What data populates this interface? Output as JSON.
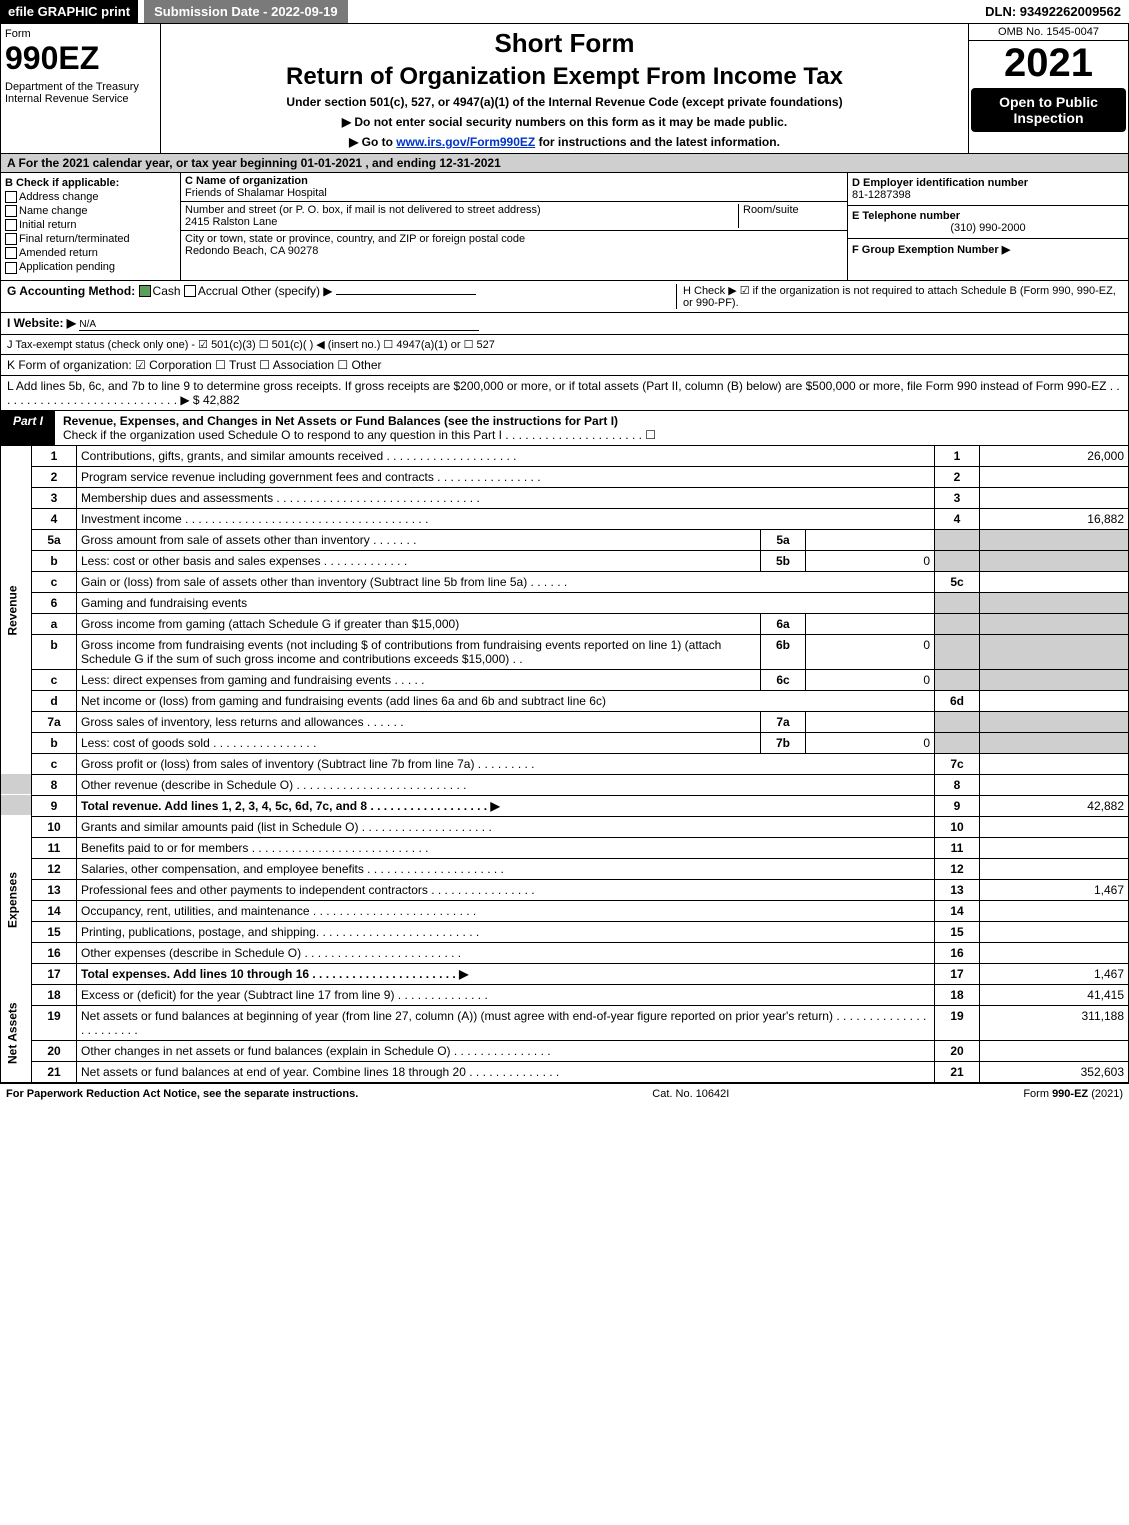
{
  "top": {
    "efile": "efile GRAPHIC print",
    "submission": "Submission Date - 2022-09-19",
    "dln": "DLN: 93492262009562"
  },
  "header": {
    "form_label": "Form",
    "form_no": "990EZ",
    "dept": "Department of the Treasury\nInternal Revenue Service",
    "short": "Short Form",
    "title": "Return of Organization Exempt From Income Tax",
    "subtitle": "Under section 501(c), 527, or 4947(a)(1) of the Internal Revenue Code (except private foundations)",
    "note1": "▶ Do not enter social security numbers on this form as it may be made public.",
    "note2_pre": "▶ Go to ",
    "note2_link": "www.irs.gov/Form990EZ",
    "note2_post": " for instructions and the latest information.",
    "omb": "OMB No. 1545-0047",
    "year": "2021",
    "open": "Open to Public Inspection"
  },
  "secA": "A  For the 2021 calendar year, or tax year beginning 01-01-2021  , and ending 12-31-2021",
  "checkB": {
    "label": "B  Check if applicable:",
    "addr": "Address change",
    "name": "Name change",
    "init": "Initial return",
    "final": "Final return/terminated",
    "amend": "Amended return",
    "app": "Application pending"
  },
  "org": {
    "cname_lbl": "C Name of organization",
    "cname": "Friends of Shalamar Hospital",
    "addr_lbl": "Number and street (or P. O. box, if mail is not delivered to street address)",
    "room_lbl": "Room/suite",
    "addr": "2415 Ralston Lane",
    "city_lbl": "City or town, state or province, country, and ZIP or foreign postal code",
    "city": "Redondo Beach, CA  90278"
  },
  "right": {
    "ein_lbl": "D Employer identification number",
    "ein": "81-1287398",
    "tel_lbl": "E Telephone number",
    "tel": "(310) 990-2000",
    "grp_lbl": "F Group Exemption Number   ▶"
  },
  "lineG": {
    "label": "G Accounting Method:",
    "cash": "Cash",
    "accrual": "Accrual",
    "other": "Other (specify) ▶"
  },
  "lineH": "H   Check ▶ ☑ if the organization is not required to attach Schedule B (Form 990, 990-EZ, or 990-PF).",
  "lineI": {
    "label": "I Website: ▶",
    "val": "N/A"
  },
  "lineJ": "J Tax-exempt status (check only one) - ☑ 501(c)(3) ☐ 501(c)(  ) ◀ (insert no.) ☐ 4947(a)(1) or ☐ 527",
  "lineK": "K Form of organization:  ☑ Corporation  ☐ Trust  ☐ Association  ☐ Other",
  "lineL": "L Add lines 5b, 6c, and 7b to line 9 to determine gross receipts. If gross receipts are $200,000 or more, or if total assets (Part II, column (B) below) are $500,000 or more, file Form 990 instead of Form 990-EZ  .  .  .  .  .  .  .  .  .  .  .  .  .  .  .  .  .  .  .  .  .  .  .  .  .  .  .  .  ▶ $ 42,882",
  "partI": {
    "tab": "Part I",
    "title": "Revenue, Expenses, and Changes in Net Assets or Fund Balances (see the instructions for Part I)",
    "check": "Check if the organization used Schedule O to respond to any question in this Part I  .  .  .  .  .  .  .  .  .  .  .  .  .  .  .  .  .  .  .  .  .  ☐"
  },
  "sideLabels": {
    "rev": "Revenue",
    "exp": "Expenses",
    "net": "Net Assets"
  },
  "lines": {
    "l1": {
      "n": "1",
      "d": "Contributions, gifts, grants, and similar amounts received  .  .  .  .  .  .  .  .  .  .  .  .  .  .  .  .  .  .  .  .",
      "ln": "1",
      "v": "26,000"
    },
    "l2": {
      "n": "2",
      "d": "Program service revenue including government fees and contracts  .  .  .  .  .  .  .  .  .  .  .  .  .  .  .  .",
      "ln": "2",
      "v": ""
    },
    "l3": {
      "n": "3",
      "d": "Membership dues and assessments  .  .  .  .  .  .  .  .  .  .  .  .  .  .  .  .  .  .  .  .  .  .  .  .  .  .  .  .  .  .  .",
      "ln": "3",
      "v": ""
    },
    "l4": {
      "n": "4",
      "d": "Investment income  .  .  .  .  .  .  .  .  .  .  .  .  .  .  .  .  .  .  .  .  .  .  .  .  .  .  .  .  .  .  .  .  .  .  .  .  .",
      "ln": "4",
      "v": "16,882"
    },
    "l5a": {
      "n": "5a",
      "d": "Gross amount from sale of assets other than inventory  .  .  .  .  .  .  .",
      "sub": "5a",
      "sv": ""
    },
    "l5b": {
      "n": "b",
      "d": "Less: cost or other basis and sales expenses  .  .  .  .  .  .  .  .  .  .  .  .  .",
      "sub": "5b",
      "sv": "0"
    },
    "l5c": {
      "n": "c",
      "d": "Gain or (loss) from sale of assets other than inventory (Subtract line 5b from line 5a)  .  .  .  .  .  .",
      "ln": "5c",
      "v": ""
    },
    "l6": {
      "n": "6",
      "d": "Gaming and fundraising events"
    },
    "l6a": {
      "n": "a",
      "d": "Gross income from gaming (attach Schedule G if greater than $15,000)",
      "sub": "6a",
      "sv": ""
    },
    "l6b": {
      "n": "b",
      "d": "Gross income from fundraising events (not including $                      of contributions from fundraising events reported on line 1) (attach Schedule G if the sum of such gross income and contributions exceeds $15,000)    .   .",
      "sub": "6b",
      "sv": "0"
    },
    "l6c": {
      "n": "c",
      "d": "Less: direct expenses from gaming and fundraising events   .  .  .  .  .",
      "sub": "6c",
      "sv": "0"
    },
    "l6d": {
      "n": "d",
      "d": "Net income or (loss) from gaming and fundraising events (add lines 6a and 6b and subtract line 6c)",
      "ln": "6d",
      "v": ""
    },
    "l7a": {
      "n": "7a",
      "d": "Gross sales of inventory, less returns and allowances  .  .  .  .  .  .",
      "sub": "7a",
      "sv": ""
    },
    "l7b": {
      "n": "b",
      "d": "Less: cost of goods sold        .  .  .  .  .  .  .  .  .  .  .  .  .  .  .  .",
      "sub": "7b",
      "sv": "0"
    },
    "l7c": {
      "n": "c",
      "d": "Gross profit or (loss) from sales of inventory (Subtract line 7b from line 7a)  .  .  .  .  .  .  .  .  .",
      "ln": "7c",
      "v": ""
    },
    "l8": {
      "n": "8",
      "d": "Other revenue (describe in Schedule O)  .  .  .  .  .  .  .  .  .  .  .  .  .  .  .  .  .  .  .  .  .  .  .  .  .  .",
      "ln": "8",
      "v": ""
    },
    "l9": {
      "n": "9",
      "d": "Total revenue. Add lines 1, 2, 3, 4, 5c, 6d, 7c, and 8   .  .  .  .  .  .  .  .  .  .  .  .  .  .  .  .  .  .        ▶",
      "ln": "9",
      "v": "42,882"
    },
    "l10": {
      "n": "10",
      "d": "Grants and similar amounts paid (list in Schedule O)  .  .  .  .  .  .  .  .  .  .  .  .  .  .  .  .  .  .  .  .",
      "ln": "10",
      "v": ""
    },
    "l11": {
      "n": "11",
      "d": "Benefits paid to or for members      .  .  .  .  .  .  .  .  .  .  .  .  .  .  .  .  .  .  .  .  .  .  .  .  .  .  .",
      "ln": "11",
      "v": ""
    },
    "l12": {
      "n": "12",
      "d": "Salaries, other compensation, and employee benefits .  .  .  .  .  .  .  .  .  .  .  .  .  .  .  .  .  .  .  .  .",
      "ln": "12",
      "v": ""
    },
    "l13": {
      "n": "13",
      "d": "Professional fees and other payments to independent contractors  .  .  .  .  .  .  .  .  .  .  .  .  .  .  .  .",
      "ln": "13",
      "v": "1,467"
    },
    "l14": {
      "n": "14",
      "d": "Occupancy, rent, utilities, and maintenance .  .  .  .  .  .  .  .  .  .  .  .  .  .  .  .  .  .  .  .  .  .  .  .  .",
      "ln": "14",
      "v": ""
    },
    "l15": {
      "n": "15",
      "d": "Printing, publications, postage, and shipping.  .  .  .  .  .  .  .  .  .  .  .  .  .  .  .  .  .  .  .  .  .  .  .  .",
      "ln": "15",
      "v": ""
    },
    "l16": {
      "n": "16",
      "d": "Other expenses (describe in Schedule O)      .  .  .  .  .  .  .  .  .  .  .  .  .  .  .  .  .  .  .  .  .  .  .  .",
      "ln": "16",
      "v": ""
    },
    "l17": {
      "n": "17",
      "d": "Total expenses. Add lines 10 through 16      .  .  .  .  .  .  .  .  .  .  .  .  .  .  .  .  .  .  .  .  .  .        ▶",
      "ln": "17",
      "v": "1,467"
    },
    "l18": {
      "n": "18",
      "d": "Excess or (deficit) for the year (Subtract line 17 from line 9)        .  .  .  .  .  .  .  .  .  .  .  .  .  .",
      "ln": "18",
      "v": "41,415"
    },
    "l19": {
      "n": "19",
      "d": "Net assets or fund balances at beginning of year (from line 27, column (A)) (must agree with end-of-year figure reported on prior year's return) .  .  .  .  .  .  .  .  .  .  .  .  .  .  .  .  .  .  .  .  .  .  .",
      "ln": "19",
      "v": "311,188"
    },
    "l20": {
      "n": "20",
      "d": "Other changes in net assets or fund balances (explain in Schedule O) .  .  .  .  .  .  .  .  .  .  .  .  .  .  .",
      "ln": "20",
      "v": ""
    },
    "l21": {
      "n": "21",
      "d": "Net assets or fund balances at end of year. Combine lines 18 through 20 .  .  .  .  .  .  .  .  .  .  .  .  .  .",
      "ln": "21",
      "v": "352,603"
    }
  },
  "footer": {
    "left": "For Paperwork Reduction Act Notice, see the separate instructions.",
    "mid": "Cat. No. 10642I",
    "right": "Form 990-EZ (2021)"
  },
  "colors": {
    "shade": "#cfcfcf",
    "black": "#000000",
    "link": "#0033cc",
    "green": "#5a9e5a"
  }
}
